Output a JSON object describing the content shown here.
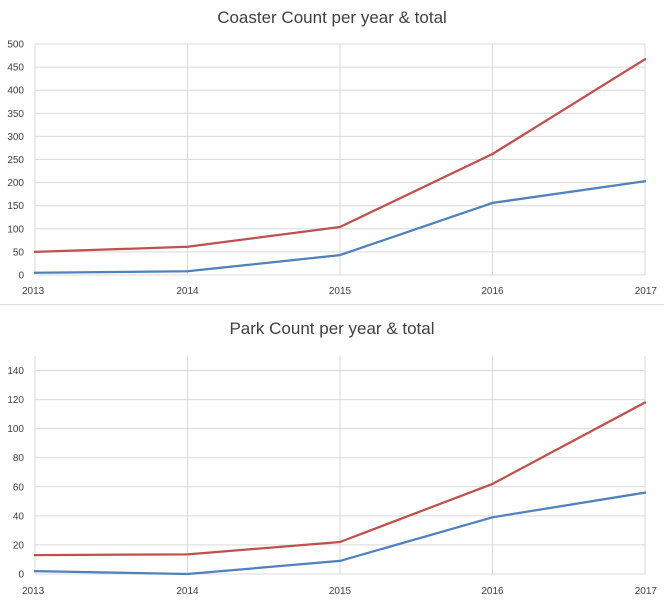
{
  "colors": {
    "series_blue": "#4f81bd",
    "series_red": "#c0504d",
    "grid": "#d9d9d9",
    "text": "#404040"
  },
  "chart_data": [
    {
      "type": "line",
      "title": "Coaster Count per year & total",
      "x": [
        "2013",
        "2014",
        "2015",
        "2016",
        "2017"
      ],
      "ylim": [
        0,
        500
      ],
      "yticks": [
        "0",
        "50",
        "100",
        "150",
        "200",
        "250",
        "300",
        "350",
        "400",
        "450",
        "500"
      ],
      "grid": true,
      "series": [
        {
          "color": "#4f81bd",
          "values": [
            5,
            8,
            43,
            156,
            203
          ]
        },
        {
          "color": "#c0504d",
          "values": [
            50,
            61,
            104,
            262,
            467
          ]
        }
      ]
    },
    {
      "type": "line",
      "title": "Park Count per year & total",
      "x": [
        "2013",
        "2014",
        "2015",
        "2016",
        "2017"
      ],
      "ylim": [
        0,
        150
      ],
      "yticks": [
        "0",
        "20",
        "40",
        "60",
        "80",
        "100",
        "120",
        "140"
      ],
      "grid": true,
      "series": [
        {
          "color": "#4f81bd",
          "values": [
            2,
            0,
            9,
            39,
            56
          ]
        },
        {
          "color": "#c0504d",
          "values": [
            13,
            13.5,
            22,
            62,
            118
          ]
        }
      ]
    }
  ]
}
